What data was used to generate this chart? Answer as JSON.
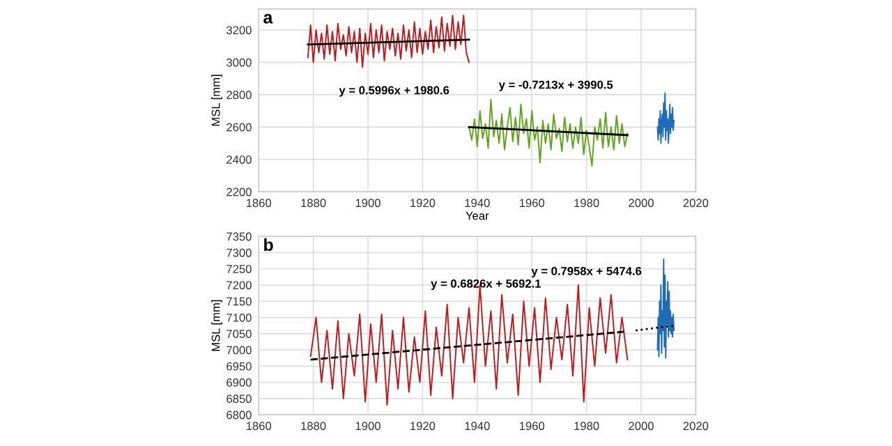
{
  "chart_data": [
    {
      "type": "line",
      "title": "a",
      "xlabel": "Year",
      "ylabel": "MSL [mm]",
      "xlim": [
        1860,
        2020
      ],
      "xticks": [
        1860,
        1880,
        1900,
        1920,
        1940,
        1960,
        1980,
        2000,
        2020
      ],
      "ylim": [
        2200,
        3330
      ],
      "yticks": [
        2200,
        2400,
        2600,
        2800,
        3000,
        3200
      ],
      "grid": true,
      "legend": false,
      "series": [
        {
          "color": "#c0191c",
          "x": [
            1878,
            1879,
            1880,
            1881,
            1882,
            1883,
            1884,
            1885,
            1886,
            1887,
            1888,
            1889,
            1890,
            1891,
            1892,
            1893,
            1894,
            1895,
            1896,
            1897,
            1898,
            1899,
            1900,
            1901,
            1902,
            1903,
            1904,
            1905,
            1906,
            1907,
            1908,
            1909,
            1910,
            1911,
            1912,
            1913,
            1914,
            1915,
            1916,
            1917,
            1918,
            1919,
            1920,
            1921,
            1922,
            1923,
            1924,
            1925,
            1926,
            1927,
            1928,
            1929,
            1930,
            1931,
            1932,
            1933,
            1934,
            1935,
            1936,
            1937
          ],
          "values": [
            3030,
            3230,
            3000,
            3200,
            3060,
            3180,
            3020,
            3230,
            3050,
            3190,
            3010,
            3240,
            3080,
            3170,
            3040,
            3220,
            3060,
            3190,
            3000,
            3210,
            2970,
            3180,
            3050,
            3240,
            3030,
            3200,
            3060,
            3230,
            3010,
            3190,
            3080,
            3210,
            3040,
            3180,
            3020,
            3230,
            3070,
            3200,
            3030,
            3250,
            3060,
            3210,
            3050,
            3190,
            3080,
            3260,
            3060,
            3220,
            3090,
            3280,
            3070,
            3240,
            3100,
            3290,
            3080,
            3250,
            3110,
            3290,
            3060,
            3000
          ]
        },
        {
          "color": "#5ea51c",
          "x": [
            1937,
            1938,
            1939,
            1940,
            1941,
            1942,
            1943,
            1944,
            1945,
            1946,
            1947,
            1948,
            1949,
            1950,
            1951,
            1952,
            1953,
            1954,
            1955,
            1956,
            1957,
            1958,
            1959,
            1960,
            1961,
            1962,
            1963,
            1964,
            1965,
            1966,
            1967,
            1968,
            1969,
            1970,
            1971,
            1972,
            1973,
            1974,
            1975,
            1976,
            1977,
            1978,
            1979,
            1980,
            1981,
            1982,
            1983,
            1984,
            1985,
            1986,
            1987,
            1988,
            1989,
            1990,
            1991,
            1992,
            1993,
            1994,
            1995
          ],
          "values": [
            2600,
            2520,
            2650,
            2480,
            2700,
            2530,
            2620,
            2470,
            2770,
            2540,
            2640,
            2500,
            2680,
            2460,
            2600,
            2720,
            2510,
            2660,
            2490,
            2740,
            2560,
            2650,
            2470,
            2700,
            2520,
            2600,
            2380,
            2640,
            2500,
            2620,
            2460,
            2680,
            2530,
            2590,
            2450,
            2660,
            2510,
            2620,
            2470,
            2600,
            2500,
            2660,
            2430,
            2580,
            2480,
            2360,
            2600,
            2520,
            2650,
            2470,
            2690,
            2480,
            2600,
            2460,
            2670,
            2500,
            2620,
            2480,
            2560
          ]
        },
        {
          "color": "#1f6bb5",
          "x": [
            2006,
            2006.25,
            2006.5,
            2006.75,
            2007,
            2007.25,
            2007.5,
            2007.75,
            2008,
            2008.25,
            2008.5,
            2008.75,
            2009,
            2009.25,
            2009.5,
            2009.75,
            2010,
            2010.25,
            2010.5,
            2010.75,
            2011,
            2011.25,
            2011.5,
            2011.75,
            2012
          ],
          "values": [
            2600,
            2520,
            2650,
            2560,
            2700,
            2500,
            2620,
            2680,
            2540,
            2750,
            2600,
            2810,
            2520,
            2700,
            2580,
            2650,
            2500,
            2620,
            2740,
            2560,
            2680,
            2600,
            2720,
            2580,
            2640
          ]
        },
        {
          "color": "#000000",
          "x": [
            1878,
            1937
          ],
          "values": [
            3110,
            3140
          ]
        },
        {
          "color": "#000000",
          "x": [
            1937,
            1995
          ],
          "values": [
            2600,
            2550
          ]
        }
      ],
      "annotations": [
        "y = 0.5996x + 1980.6",
        "y = -0.7213x + 3990.5"
      ]
    },
    {
      "type": "line",
      "title": "b",
      "ylabel": "MSL [mm]",
      "xlim": [
        1860,
        2020
      ],
      "xticks": [
        1860,
        1880,
        1900,
        1920,
        1940,
        1960,
        1980,
        2000,
        2020
      ],
      "ylim": [
        6800,
        7350
      ],
      "yticks": [
        6800,
        6850,
        6900,
        6950,
        7000,
        7050,
        7100,
        7150,
        7200,
        7250,
        7300,
        7350
      ],
      "grid": true,
      "legend": false,
      "series": [
        {
          "color": "#c0191c",
          "x": [
            1879,
            1881,
            1883,
            1885,
            1887,
            1889,
            1891,
            1893,
            1895,
            1897,
            1899,
            1901,
            1903,
            1905,
            1907,
            1909,
            1911,
            1913,
            1915,
            1917,
            1919,
            1921,
            1923,
            1925,
            1927,
            1929,
            1931,
            1933,
            1935,
            1937,
            1939,
            1941,
            1943,
            1945,
            1947,
            1949,
            1951,
            1953,
            1955,
            1957,
            1959,
            1961,
            1963,
            1965,
            1967,
            1969,
            1971,
            1973,
            1975,
            1977,
            1979,
            1981,
            1983,
            1985,
            1987,
            1989,
            1991,
            1993,
            1995
          ],
          "values": [
            6980,
            7100,
            6900,
            7060,
            6880,
            7090,
            6850,
            7050,
            6920,
            7110,
            6840,
            7080,
            6900,
            7110,
            6830,
            7060,
            6880,
            7100,
            6870,
            7040,
            6900,
            7120,
            6860,
            7070,
            6920,
            7140,
            6850,
            7100,
            6960,
            7130,
            6900,
            7200,
            6950,
            7120,
            6880,
            7170,
            6960,
            7110,
            6860,
            7150,
            6950,
            7130,
            6900,
            7160,
            6940,
            7100,
            6970,
            7140,
            6920,
            7200,
            6840,
            7130,
            6950,
            7160,
            6990,
            7170,
            6960,
            7100,
            6970
          ]
        },
        {
          "color": "#1f6bb5",
          "x": [
            2006,
            2006.25,
            2006.5,
            2006.75,
            2007,
            2007.25,
            2007.5,
            2007.75,
            2008,
            2008.25,
            2008.5,
            2008.75,
            2009,
            2009.25,
            2009.5,
            2009.75,
            2010,
            2010.25,
            2010.5,
            2010.75,
            2011,
            2011.25,
            2011.5,
            2011.75,
            2012
          ],
          "values": [
            7000,
            7100,
            6980,
            7150,
            7050,
            7200,
            6990,
            7120,
            7060,
            7280,
            7010,
            7230,
            6975,
            7150,
            7080,
            7210,
            7040,
            7180,
            7060,
            7120,
            7050,
            7100,
            7040,
            7110,
            7060
          ]
        },
        {
          "color": "#000000",
          "line_style": "dashed",
          "x": [
            1879,
            1995
          ],
          "values": [
            6970,
            7057
          ]
        },
        {
          "color": "#000000",
          "line_style": "dotted",
          "x": [
            1998,
            2012
          ],
          "values": [
            7060,
            7075
          ]
        }
      ],
      "annotations": [
        "y = 0.6826x + 5692.1",
        "y = 0.7958x + 5474.6"
      ]
    }
  ]
}
